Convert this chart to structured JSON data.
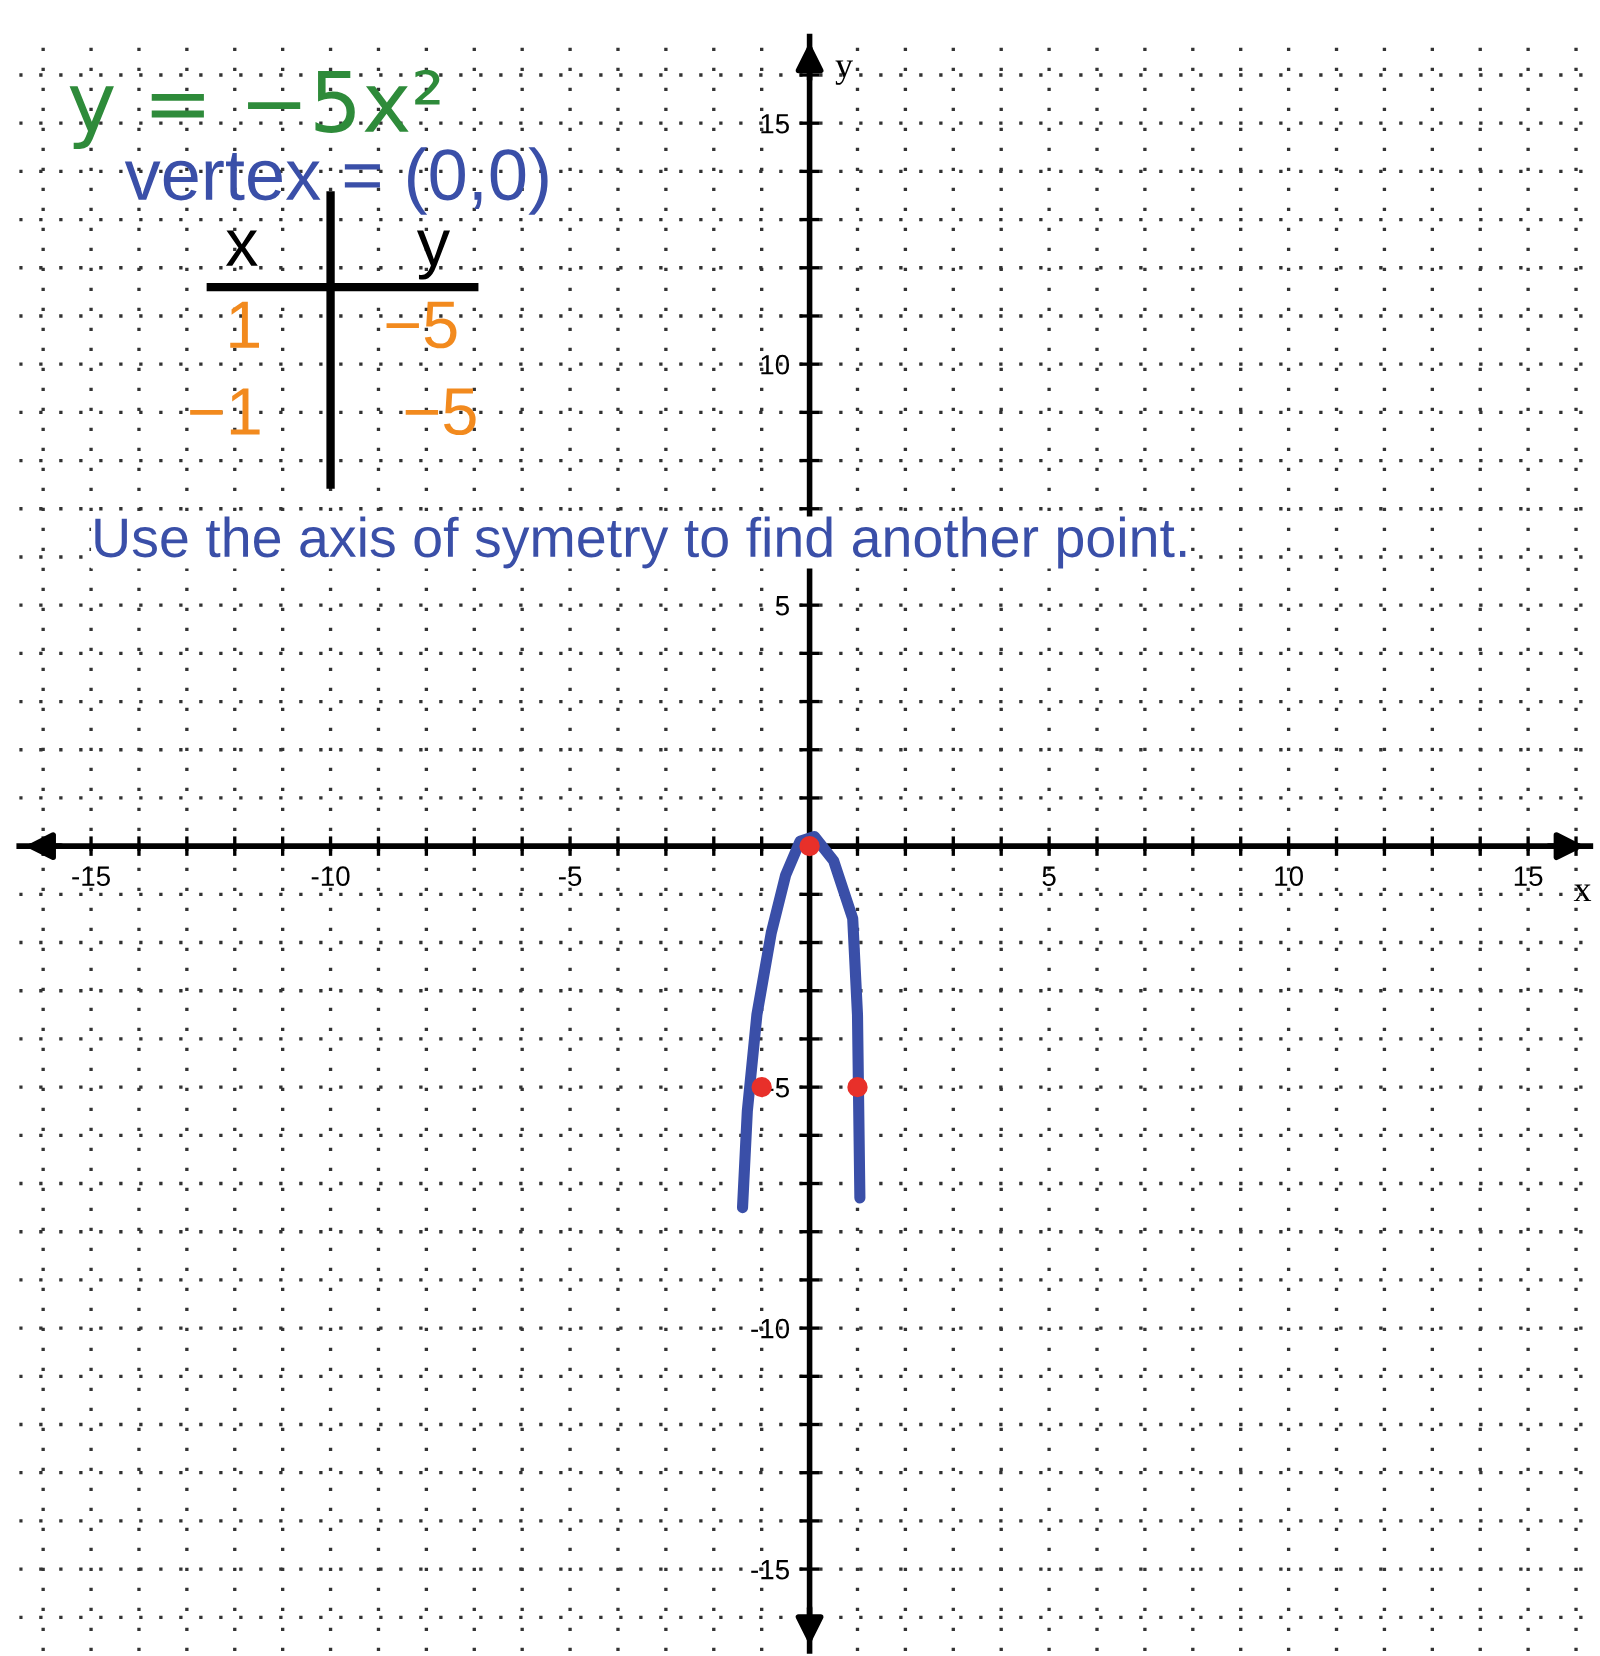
{
  "chart_data": {
    "type": "line",
    "title": "y = −5x²",
    "xlabel": "x",
    "ylabel": "y",
    "xlim": [
      -16.5,
      16.3
    ],
    "ylim": [
      -16.7,
      16.8
    ],
    "xticks": [
      {
        "value": -16,
        "label": null
      },
      -15,
      {
        "value": -14,
        "label": null
      },
      {
        "value": -13,
        "label": null
      },
      {
        "value": -12,
        "label": null
      },
      {
        "value": -11,
        "label": null
      },
      -10,
      {
        "value": -9,
        "label": null
      },
      {
        "value": -8,
        "label": null
      },
      {
        "value": -7,
        "label": null
      },
      {
        "value": -6,
        "label": null
      },
      -5,
      {
        "value": -4,
        "label": null
      },
      {
        "value": -3,
        "label": null
      },
      {
        "value": -2,
        "label": null
      },
      {
        "value": -1,
        "label": null
      },
      {
        "value": 1,
        "label": null
      },
      {
        "value": 2,
        "label": null
      },
      {
        "value": 3,
        "label": null
      },
      {
        "value": 4,
        "label": null
      },
      5,
      {
        "value": 6,
        "label": null
      },
      {
        "value": 7,
        "label": null
      },
      {
        "value": 8,
        "label": null
      },
      {
        "value": 9,
        "label": null
      },
      10,
      {
        "value": 11,
        "label": null
      },
      {
        "value": 12,
        "label": null
      },
      {
        "value": 13,
        "label": null
      },
      {
        "value": 14,
        "label": null
      },
      15,
      {
        "value": 16,
        "label": null
      }
    ],
    "yticks": [
      {
        "value": -16,
        "label": null
      },
      -15,
      {
        "value": -14,
        "label": null
      },
      {
        "value": -13,
        "label": null
      },
      {
        "value": -12,
        "label": null
      },
      {
        "value": -11,
        "label": null
      },
      -10,
      {
        "value": -9,
        "label": null
      },
      {
        "value": -8,
        "label": null
      },
      {
        "value": -7,
        "label": null
      },
      {
        "value": -6,
        "label": null
      },
      -5,
      {
        "value": -4,
        "label": null
      },
      {
        "value": -3,
        "label": null
      },
      {
        "value": -2,
        "label": null
      },
      {
        "value": -1,
        "label": null
      },
      {
        "value": 1,
        "label": null
      },
      {
        "value": 2,
        "label": null
      },
      {
        "value": 3,
        "label": null
      },
      {
        "value": 4,
        "label": null
      },
      5,
      {
        "value": 6,
        "label": null
      },
      {
        "value": 7,
        "label": null
      },
      {
        "value": 8,
        "label": null
      },
      {
        "value": 9,
        "label": null
      },
      10,
      {
        "value": 11,
        "label": null
      },
      {
        "value": 12,
        "label": null
      },
      {
        "value": 13,
        "label": null
      },
      {
        "value": 14,
        "label": null
      },
      15,
      {
        "value": 16,
        "label": null
      }
    ],
    "grid": true,
    "series": [
      {
        "color": "#3a4fa8",
        "x": [
          -1.4,
          -1.3,
          -1.1,
          -0.8,
          -0.5,
          -0.2,
          0.1,
          0.5,
          0.9,
          1.0,
          1.05
        ],
        "values": [
          -7.5,
          -5.5,
          -3.5,
          -1.8,
          -0.6,
          0.1,
          0.2,
          -0.3,
          -1.5,
          -3.5,
          -7.3
        ]
      },
      {
        "type": "scatter",
        "color": "#e8302a",
        "x": [
          -1,
          0,
          1
        ],
        "values": [
          -5,
          0,
          -5
        ]
      }
    ],
    "annotations": [
      "vertex = (0,0)",
      "x",
      "y",
      "1",
      "−5",
      "−1",
      "−5",
      "Use the axis of symetry to find another point."
    ]
  }
}
